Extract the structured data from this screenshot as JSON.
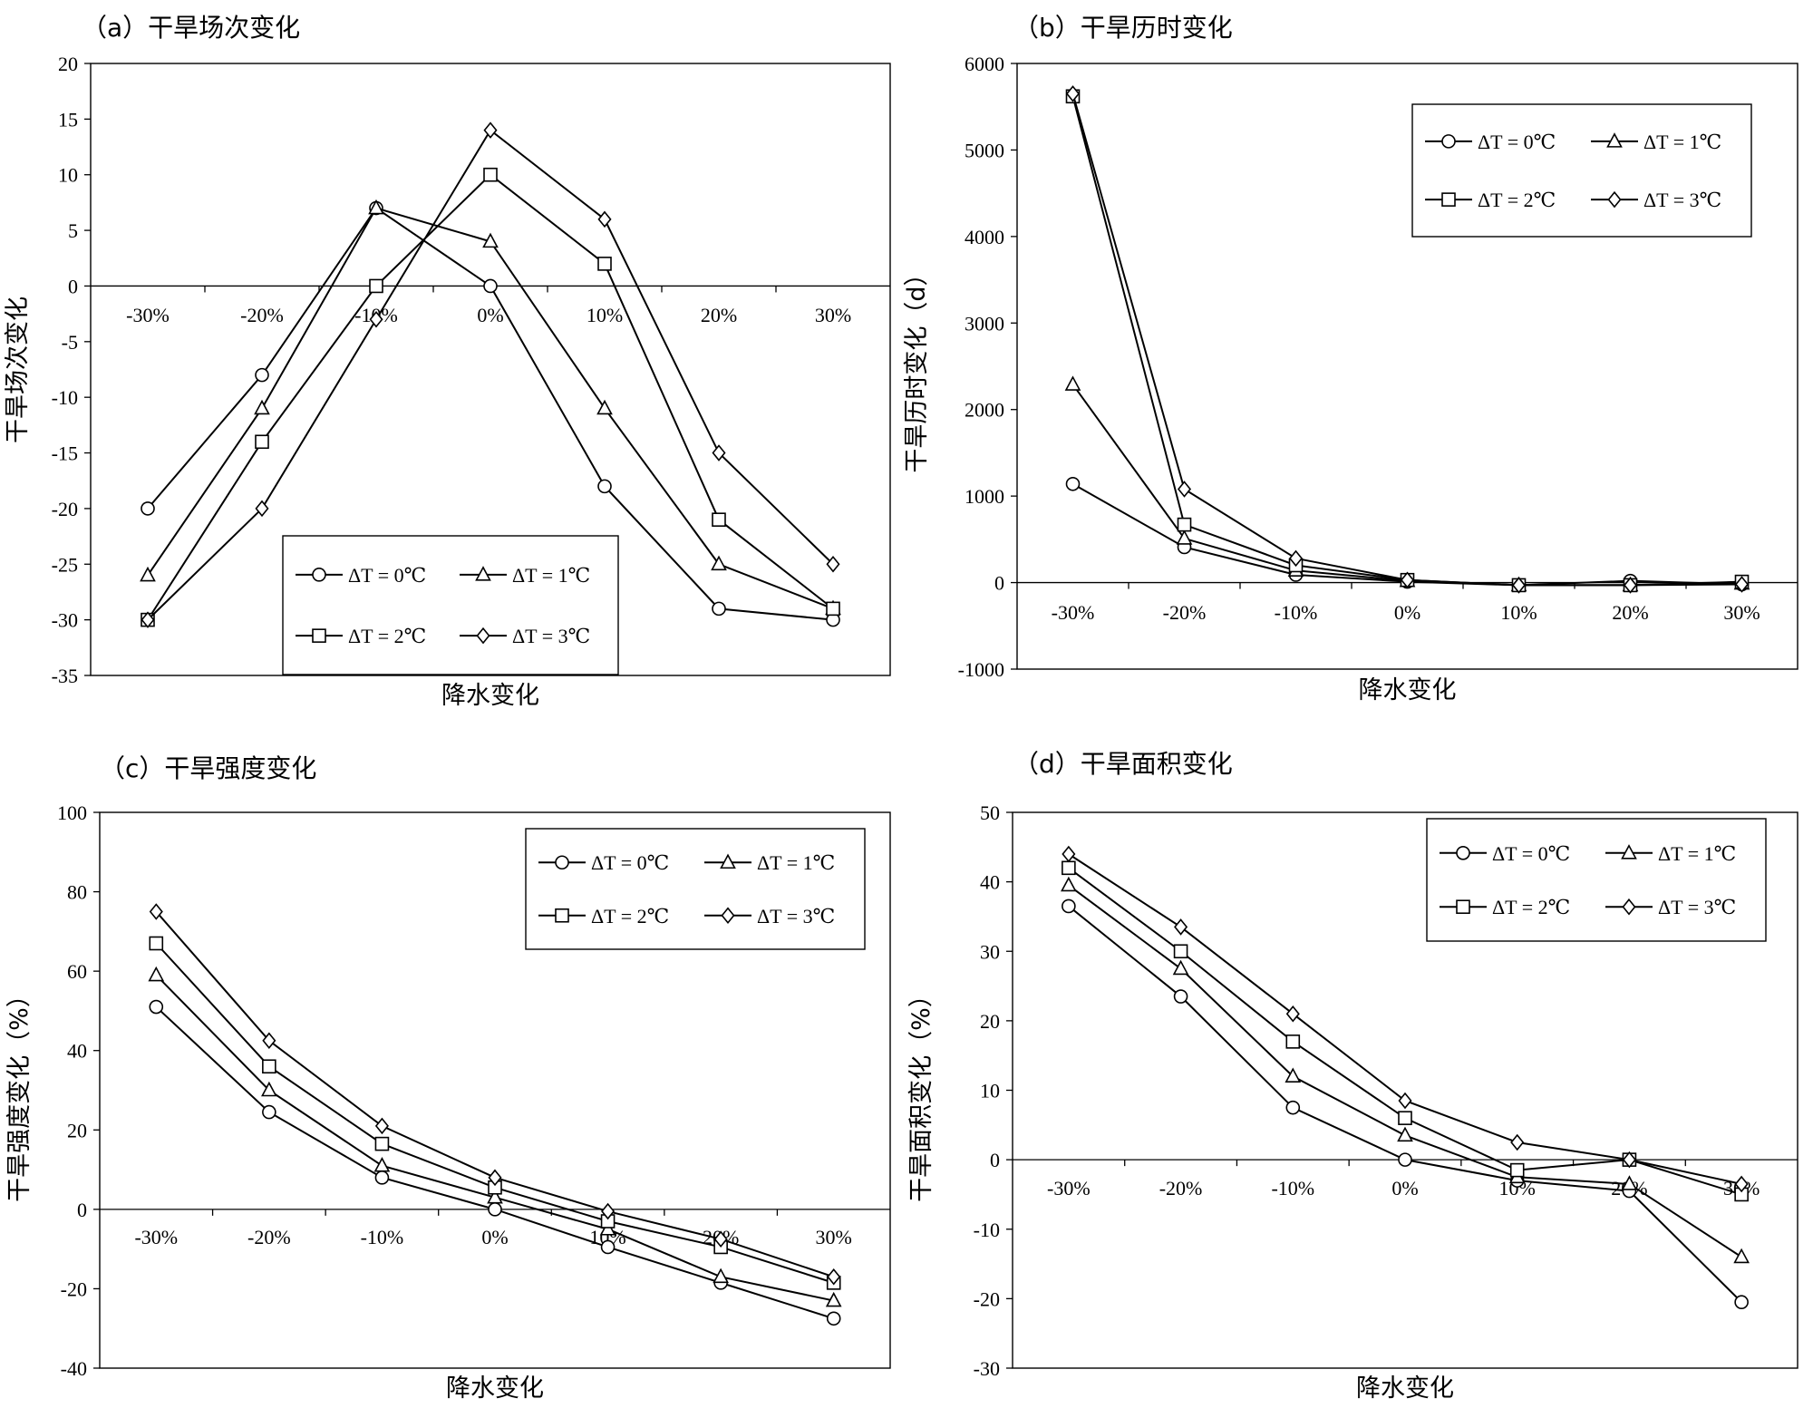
{
  "chart_data": [
    {
      "id": "a",
      "type": "line",
      "title": "（a）干旱场次变化",
      "xlabel": "降水变化",
      "ylabel": "干旱场次变化",
      "categories": [
        "-30%",
        "-20%",
        "-10%",
        "0%",
        "10%",
        "20%",
        "30%"
      ],
      "ylim": [
        -35,
        20
      ],
      "yticks": [
        -35,
        -30,
        -25,
        -20,
        -15,
        -10,
        -5,
        0,
        5,
        10,
        15,
        20
      ],
      "legend_position": "bottom-center",
      "series": [
        {
          "name": "ΔT = 0℃",
          "marker": "circle",
          "values": [
            -20,
            -8,
            7,
            0,
            -18,
            -29,
            -30
          ]
        },
        {
          "name": "ΔT = 1℃",
          "marker": "triangle",
          "values": [
            -26,
            -11,
            7,
            4,
            -11,
            -25,
            -29
          ]
        },
        {
          "name": "ΔT = 2℃",
          "marker": "square",
          "values": [
            -30,
            -14,
            0,
            10,
            2,
            -21,
            -29
          ]
        },
        {
          "name": "ΔT = 3℃",
          "marker": "diamond",
          "values": [
            -30,
            -20,
            -3,
            14,
            6,
            -15,
            -25
          ]
        }
      ]
    },
    {
      "id": "b",
      "type": "line",
      "title": "（b）干旱历时变化",
      "xlabel": "降水变化",
      "ylabel": "干旱历时变化（d）",
      "categories": [
        "-30%",
        "-20%",
        "-10%",
        "0%",
        "10%",
        "20%",
        "30%"
      ],
      "ylim": [
        -1000,
        6000
      ],
      "yticks": [
        -1000,
        0,
        1000,
        2000,
        3000,
        4000,
        5000,
        6000
      ],
      "legend_position": "top-right",
      "series": [
        {
          "name": "ΔT = 0℃",
          "marker": "circle",
          "values": [
            1140,
            410,
            90,
            10,
            -30,
            20,
            -20
          ]
        },
        {
          "name": "ΔT = 1℃",
          "marker": "triangle",
          "values": [
            2290,
            510,
            140,
            20,
            -30,
            -30,
            -10
          ]
        },
        {
          "name": "ΔT = 2℃",
          "marker": "square",
          "values": [
            5620,
            670,
            200,
            30,
            -30,
            -30,
            10
          ]
        },
        {
          "name": "ΔT = 3℃",
          "marker": "diamond",
          "values": [
            5650,
            1080,
            280,
            30,
            -30,
            -30,
            -20
          ]
        }
      ]
    },
    {
      "id": "c",
      "type": "line",
      "title": "（c）干旱强度变化",
      "xlabel": "降水变化",
      "ylabel": "干旱强度变化（%）",
      "categories": [
        "-30%",
        "-20%",
        "-10%",
        "0%",
        "10%",
        "20%",
        "30%"
      ],
      "ylim": [
        -40,
        100
      ],
      "yticks": [
        -40,
        -20,
        0,
        20,
        40,
        60,
        80,
        100
      ],
      "legend_position": "top-right",
      "series": [
        {
          "name": "ΔT = 0℃",
          "marker": "circle",
          "values": [
            51,
            24.5,
            8,
            0,
            -9.5,
            -18.5,
            -27.5
          ]
        },
        {
          "name": "ΔT = 1℃",
          "marker": "triangle",
          "values": [
            59,
            30,
            11,
            3,
            -5,
            -17,
            -23
          ]
        },
        {
          "name": "ΔT = 2℃",
          "marker": "square",
          "values": [
            67,
            36,
            16.5,
            5.5,
            -3,
            -9.5,
            -18.5
          ]
        },
        {
          "name": "ΔT = 3℃",
          "marker": "diamond",
          "values": [
            75,
            42.5,
            21,
            8,
            -0.5,
            -7.5,
            -17
          ]
        }
      ]
    },
    {
      "id": "d",
      "type": "line",
      "title": "（d）干旱面积变化",
      "xlabel": "降水变化",
      "ylabel": "干旱面积变化（%）",
      "categories": [
        "-30%",
        "-20%",
        "-10%",
        "0%",
        "10%",
        "20%",
        "30%"
      ],
      "ylim": [
        -30,
        50
      ],
      "yticks": [
        -30,
        -20,
        -10,
        0,
        10,
        20,
        30,
        40,
        50
      ],
      "legend_position": "top-right",
      "series": [
        {
          "name": "ΔT = 0℃",
          "marker": "circle",
          "values": [
            36.5,
            23.5,
            7.5,
            0,
            -3,
            -4.5,
            -20.5
          ]
        },
        {
          "name": "ΔT = 1℃",
          "marker": "triangle",
          "values": [
            39.5,
            27.5,
            12,
            3.5,
            -2.5,
            -3.5,
            -14
          ]
        },
        {
          "name": "ΔT = 2℃",
          "marker": "square",
          "values": [
            42,
            30,
            17,
            6,
            -1.5,
            0,
            -5
          ]
        },
        {
          "name": "ΔT = 3℃",
          "marker": "diamond",
          "values": [
            44,
            33.5,
            21,
            8.5,
            2.5,
            0,
            -3.5
          ]
        }
      ]
    }
  ]
}
